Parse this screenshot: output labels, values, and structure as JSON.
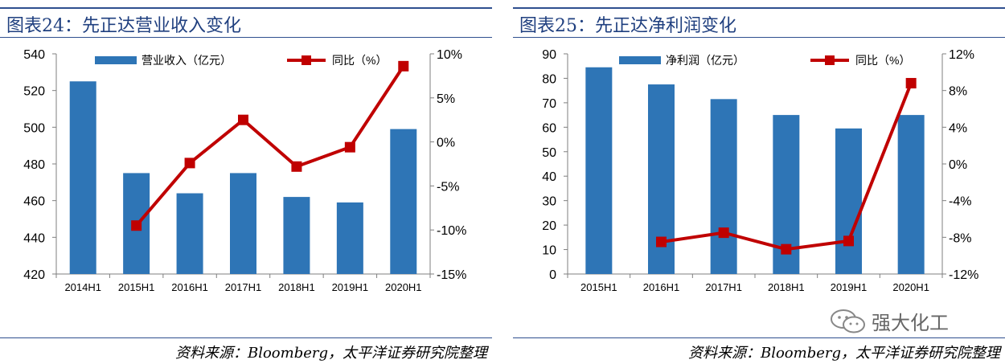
{
  "panels": [
    {
      "title": "图表24：先正达营业收入变化",
      "source": "资料来源：Bloomberg，太平洋证券研究院整理"
    },
    {
      "title": "图表25：先正达净利润变化",
      "source": "资料来源：Bloomberg，太平洋证券研究院整理"
    }
  ],
  "watermark": {
    "text": "强大化工",
    "icon": "wechat-icon"
  },
  "colors": {
    "bar": "#2e75b6",
    "line": "#c00000",
    "title": "#1f3f7f",
    "rule": "#2f4f8f"
  },
  "chart_data": [
    {
      "type": "bar+line",
      "title": "",
      "categories": [
        "2014H1",
        "2015H1",
        "2016H1",
        "2017H1",
        "2018H1",
        "2019H1",
        "2020H1"
      ],
      "series": [
        {
          "name": "营业收入（亿元）",
          "type": "bar",
          "axis": "left",
          "values": [
            525,
            475,
            464,
            475,
            462,
            459,
            499
          ]
        },
        {
          "name": "同比（%）",
          "type": "line",
          "axis": "right",
          "values": [
            null,
            -9.5,
            -2.4,
            2.5,
            -2.8,
            -0.6,
            8.6
          ]
        }
      ],
      "y_left": {
        "min": 420,
        "max": 540,
        "ticks": [
          420,
          440,
          460,
          480,
          500,
          520,
          540
        ]
      },
      "y_right": {
        "min": -15,
        "max": 10,
        "ticks": [
          -15,
          -10,
          -5,
          0,
          5,
          10
        ],
        "tick_labels": [
          "-15%",
          "-10%",
          "-5%",
          "0%",
          "5%",
          "10%"
        ]
      },
      "legend": "top",
      "grid": false
    },
    {
      "type": "bar+line",
      "title": "",
      "categories": [
        "2015H1",
        "2016H1",
        "2017H1",
        "2018H1",
        "2019H1",
        "2020H1"
      ],
      "series": [
        {
          "name": "净利润（亿元）",
          "type": "bar",
          "axis": "left",
          "values": [
            84.5,
            77.5,
            71.5,
            65,
            59.5,
            65
          ]
        },
        {
          "name": "同比（%）",
          "type": "line",
          "axis": "right",
          "values": [
            null,
            -8.5,
            -7.5,
            -9.3,
            -8.4,
            8.8
          ]
        }
      ],
      "y_left": {
        "min": 0,
        "max": 90,
        "ticks": [
          0,
          10,
          20,
          30,
          40,
          50,
          60,
          70,
          80,
          90
        ]
      },
      "y_right": {
        "min": -12,
        "max": 12,
        "ticks": [
          -12,
          -8,
          -4,
          0,
          4,
          8,
          12
        ],
        "tick_labels": [
          "-12%",
          "-8%",
          "-4%",
          "0%",
          "4%",
          "8%",
          "12%"
        ]
      },
      "legend": "top",
      "grid": false
    }
  ]
}
